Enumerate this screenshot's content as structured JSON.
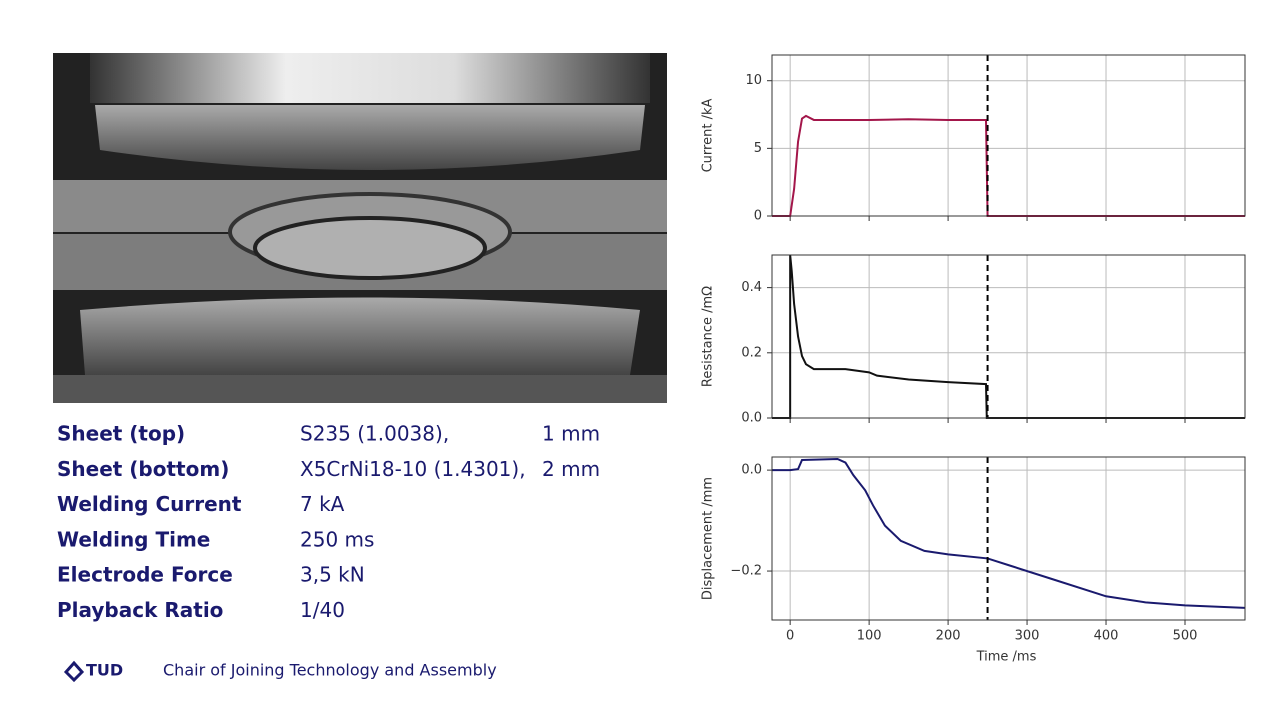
{
  "parameters": {
    "rows": [
      [
        "Sheet (top)",
        "S235 (1.0038),",
        "1 mm"
      ],
      [
        "Sheet (bottom)",
        "X5CrNi18-10 (1.4301),",
        "2 mm"
      ],
      [
        "Welding Current",
        "7 kA"
      ],
      [
        "Welding Time",
        "250 ms"
      ],
      [
        "Electrode Force",
        "3,5 kN"
      ],
      [
        "Playback Ratio",
        "1/40"
      ]
    ]
  },
  "footer": {
    "logo": "TUD",
    "text": "Chair of Joining Technology and Assembly"
  },
  "chart_data": [
    {
      "type": "line",
      "ylabel": "Current /kA",
      "x": [
        -23,
        0,
        5,
        10,
        15,
        20,
        30,
        50,
        100,
        150,
        200,
        248,
        250,
        260,
        576
      ],
      "series": [
        {
          "color": "#a3164a",
          "values": [
            0,
            0,
            2,
            5.5,
            7.2,
            7.4,
            7.1,
            7.1,
            7.1,
            7.15,
            7.1,
            7.1,
            0,
            0,
            0
          ]
        }
      ],
      "xlim": [
        -23,
        576
      ],
      "ylim": [
        0,
        11.9
      ],
      "xticks": [
        0,
        100,
        200,
        300,
        400,
        500
      ],
      "yticks": [
        0,
        5,
        10
      ],
      "grid": true,
      "vline": 250
    },
    {
      "type": "line",
      "ylabel": "Resistance /mΩ",
      "x": [
        -23,
        0,
        0,
        2,
        5,
        10,
        15,
        20,
        30,
        50,
        70,
        100,
        110,
        150,
        200,
        248,
        249,
        576
      ],
      "series": [
        {
          "color": "#111111",
          "values": [
            0,
            0,
            0.5,
            0.45,
            0.35,
            0.25,
            0.19,
            0.165,
            0.15,
            0.15,
            0.15,
            0.14,
            0.13,
            0.118,
            0.11,
            0.104,
            0,
            0
          ]
        }
      ],
      "xlim": [
        -23,
        576
      ],
      "ylim": [
        0,
        0.5
      ],
      "xticks": [
        0,
        100,
        200,
        300,
        400,
        500
      ],
      "yticks": [
        {
          "value": 0,
          "label": "0.0"
        },
        0.2,
        0.4
      ],
      "grid": true,
      "vline": 250
    },
    {
      "type": "line",
      "ylabel": "Displacement /mm",
      "xlabel": "Time /ms",
      "x": [
        -23,
        0,
        10,
        15,
        60,
        70,
        80,
        95,
        105,
        120,
        140,
        170,
        200,
        250,
        280,
        330,
        400,
        450,
        500,
        576
      ],
      "series": [
        {
          "color": "#1a1a6e",
          "values": [
            0,
            0,
            0.002,
            0.02,
            0.022,
            0.015,
            -0.01,
            -0.04,
            -0.07,
            -0.11,
            -0.14,
            -0.16,
            -0.167,
            -0.175,
            -0.19,
            -0.215,
            -0.25,
            -0.262,
            -0.268,
            -0.273
          ]
        }
      ],
      "xlim": [
        -23,
        576
      ],
      "ylim": [
        -0.297,
        0.026
      ],
      "xticks": [
        0,
        100,
        200,
        300,
        400,
        500
      ],
      "yticks": [
        {
          "value": -0.2,
          "label": "−0.2"
        },
        {
          "value": 0,
          "label": "0.0"
        }
      ],
      "grid": true,
      "vline": 250
    }
  ]
}
